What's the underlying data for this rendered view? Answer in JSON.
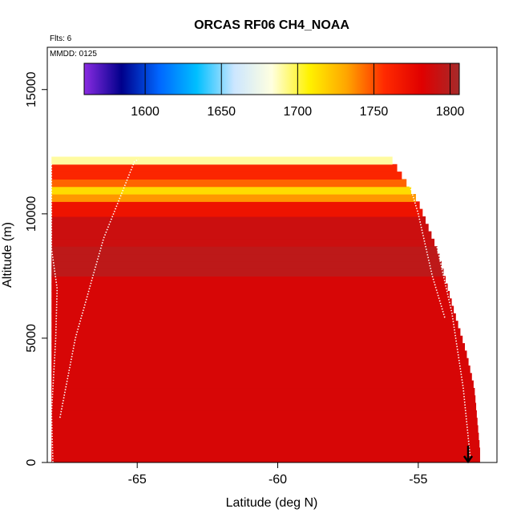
{
  "chart_data": {
    "type": "heatmap",
    "title": "ORCAS RF06 CH4_NOAA",
    "annotations": {
      "flights": "Flts: 6",
      "date": "MMDD: 0125"
    },
    "xlabel": "Latitude (deg N)",
    "ylabel": "Altitude (m)",
    "xlim": [
      -68.2,
      -52.2
    ],
    "ylim": [
      0,
      16700
    ],
    "xticks": [
      -65,
      -60,
      -55
    ],
    "yticks": [
      0,
      5000,
      10000,
      15000
    ],
    "xtick_labels": [
      "-65",
      "-60",
      "-55"
    ],
    "ytick_labels": [
      "0",
      "5000",
      "10000",
      "15000"
    ],
    "colorbar": {
      "range": [
        1560,
        1806
      ],
      "ticks": [
        1600,
        1650,
        1700,
        1750,
        1800
      ],
      "tick_labels": [
        "1600",
        "1650",
        "1700",
        "1750",
        "1800"
      ],
      "colors": [
        "#8a2be2",
        "#00008b",
        "#0066ff",
        "#00bfff",
        "#cce6ff",
        "#ffffe0",
        "#fff200",
        "#ffa500",
        "#ff2a00",
        "#e00000",
        "#a52a2a"
      ]
    },
    "grid": false,
    "legend": "none",
    "domain_boundary": {
      "lat": [
        -68.05,
        -56.0,
        -55.0,
        -54.3,
        -53.7,
        -53.3,
        -53.0,
        -52.8
      ],
      "alt": [
        12300,
        12300,
        10500,
        8500,
        6000,
        4500,
        3000,
        500
      ]
    },
    "altitude_profiles": [
      {
        "lat": [
          -68.05,
          -68.05,
          -67.85,
          -67.9,
          -68.05,
          -68.0
        ],
        "alt": [
          12000,
          8600,
          7000,
          5000,
          2000,
          0
        ]
      },
      {
        "lat": [
          -67.75,
          -67.2,
          -66.2,
          -65.1,
          -64.95
        ],
        "alt": [
          1800,
          5000,
          9000,
          12100,
          12200
        ]
      },
      {
        "lat": [
          -55.6,
          -55.0,
          -54.5,
          -54.05
        ],
        "alt": [
          12300,
          10000,
          7500,
          5800
        ]
      },
      {
        "lat": [
          -55.0,
          -54.4,
          -53.8,
          -53.4,
          -53.15
        ],
        "alt": [
          11500,
          9000,
          6000,
          3000,
          200
        ]
      }
    ],
    "field_bands": [
      {
        "alt_min": 0,
        "alt_max": 7500,
        "value": 1785
      },
      {
        "alt_min": 7500,
        "alt_max": 8600,
        "value": 1796
      },
      {
        "alt_min": 8600,
        "alt_max": 9800,
        "value": 1790
      },
      {
        "alt_min": 9800,
        "alt_max": 10400,
        "value": 1770
      },
      {
        "alt_min": 10400,
        "alt_max": 10700,
        "value": 1735
      },
      {
        "alt_min": 10700,
        "alt_max": 11000,
        "value": 1715
      },
      {
        "alt_min": 11000,
        "alt_max": 11500,
        "value": 1745
      },
      {
        "alt_min": 11500,
        "alt_max": 12000,
        "value": 1760
      },
      {
        "alt_min": 12000,
        "alt_max": 12300,
        "value": 1690
      }
    ]
  }
}
